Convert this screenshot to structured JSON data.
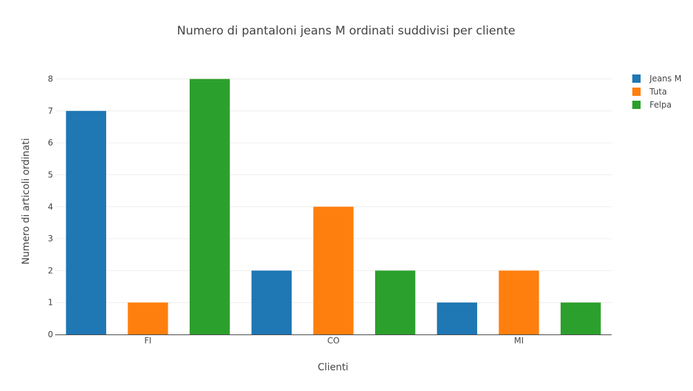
{
  "chart_data": {
    "type": "bar",
    "title": "Numero di pantaloni jeans M ordinati suddivisi per cliente",
    "xlabel": "Clienti",
    "ylabel": "Numero di articoli ordinati",
    "categories": [
      "FI",
      "CO",
      "MI"
    ],
    "series": [
      {
        "name": "Jeans M",
        "color": "#1f77b4",
        "values": [
          7,
          2,
          1
        ]
      },
      {
        "name": "Tuta",
        "color": "#ff7f0e",
        "values": [
          1,
          4,
          2
        ]
      },
      {
        "name": "Felpa",
        "color": "#2ca02c",
        "values": [
          8,
          2,
          1
        ]
      }
    ],
    "ylim": [
      0,
      8.4
    ],
    "yticks": [
      0,
      1,
      2,
      3,
      4,
      5,
      6,
      7,
      8
    ],
    "grid": true,
    "legend_position": "top-right"
  }
}
